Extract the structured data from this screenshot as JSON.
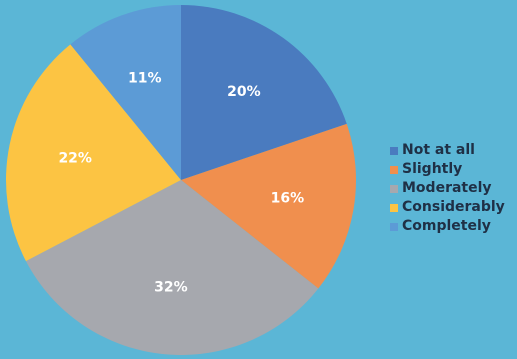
{
  "chart_data": {
    "type": "pie",
    "slices": [
      {
        "label": "Not at all",
        "value": 20,
        "display": "20%",
        "color": "#4a7bbf"
      },
      {
        "label": "Slightly",
        "value": 16,
        "display": "16%",
        "color": "#f08f4e"
      },
      {
        "label": "Moderately",
        "value": 32,
        "display": "32%",
        "color": "#a6a8ae"
      },
      {
        "label": "Considerably",
        "value": 22,
        "display": "22%",
        "color": "#fcc443"
      },
      {
        "label": "Completely",
        "value": 11,
        "display": "11%",
        "color": "#5c9bd6"
      }
    ],
    "legend_position": "right",
    "start_angle": "12 o'clock",
    "direction": "clockwise"
  },
  "background_color": "#5bb6d6",
  "legend_text_color": "#1f3046"
}
